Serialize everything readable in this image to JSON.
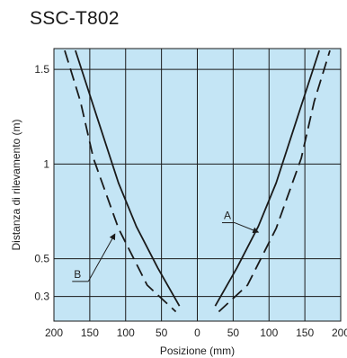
{
  "chart_data": {
    "type": "line",
    "title": "SSC-T802",
    "xlabel": "Posizione (mm)",
    "ylabel": "Distanza di rilevamento (m)",
    "xlim": [
      -200,
      200
    ],
    "ylim": [
      0.17,
      1.61
    ],
    "x_ticks": [
      -200,
      -150,
      -100,
      -50,
      0,
      50,
      100,
      150,
      200
    ],
    "x_tick_labels": [
      "200",
      "150",
      "100",
      "50",
      "0",
      "50",
      "100",
      "150",
      "200"
    ],
    "y_ticks": [
      0.3,
      0.5,
      1,
      1.5
    ],
    "y_tick_labels": [
      "0.3",
      "0.5",
      "1",
      "1.5"
    ],
    "grid": true,
    "background_color": "#c4e5f5",
    "line_color": "#1a1a1a",
    "series": [
      {
        "name": "A",
        "style": "solid",
        "left": [
          [
            -170,
            1.6
          ],
          [
            -140,
            1.25
          ],
          [
            -110,
            0.9
          ],
          [
            -85,
            0.67
          ],
          [
            -55,
            0.45
          ],
          [
            -25,
            0.25
          ]
        ],
        "right": [
          [
            25,
            0.25
          ],
          [
            55,
            0.45
          ],
          [
            85,
            0.67
          ],
          [
            110,
            0.9
          ],
          [
            140,
            1.25
          ],
          [
            170,
            1.6
          ]
        ]
      },
      {
        "name": "B",
        "style": "dashed",
        "left": [
          [
            -185,
            1.6
          ],
          [
            -163,
            1.33
          ],
          [
            -145,
            1.03
          ],
          [
            -110,
            0.66
          ],
          [
            -70,
            0.36
          ],
          [
            -30,
            0.22
          ]
        ],
        "right": [
          [
            30,
            0.22
          ],
          [
            70,
            0.36
          ],
          [
            110,
            0.66
          ],
          [
            145,
            1.03
          ],
          [
            163,
            1.33
          ],
          [
            185,
            1.6
          ]
        ]
      }
    ]
  }
}
